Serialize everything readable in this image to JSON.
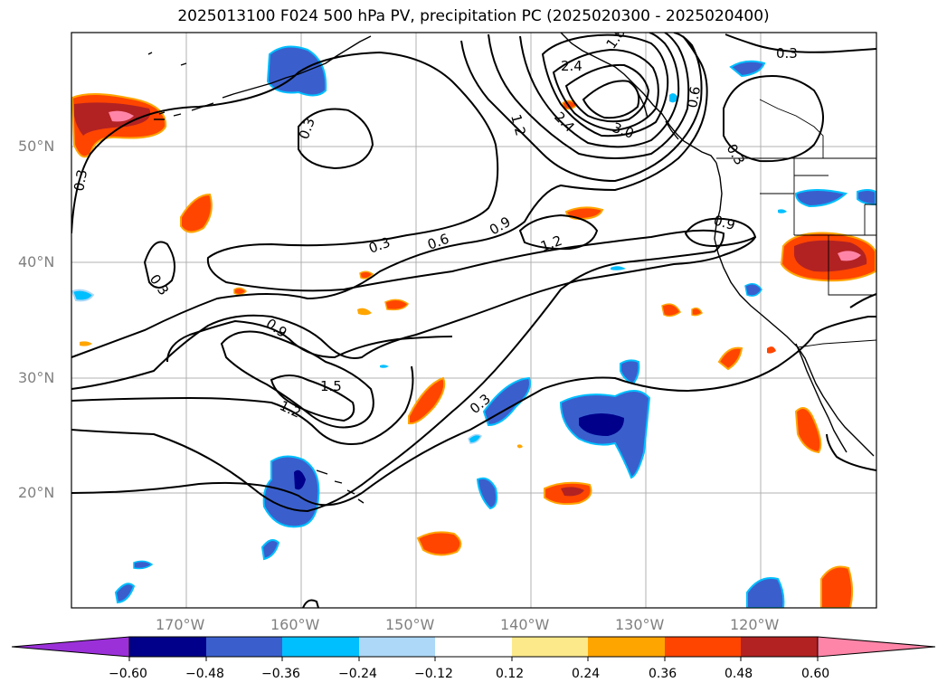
{
  "title": "2025013100 F024 500 hPa PV, precipitation PC (2025020300 - 2025020400)",
  "lat_labels": [
    "50°N",
    "40°N",
    "30°N",
    "20°N"
  ],
  "lon_labels": [
    "170°W",
    "160°W",
    "150°W",
    "140°W",
    "130°W",
    "120°W"
  ],
  "contour_labels": [
    "0.3",
    "0.3",
    "0.3",
    "0.3",
    "0.3",
    "0.3",
    "0.3",
    "0.6",
    "0.6",
    "0.9",
    "0.9",
    "0.9",
    "1.2",
    "1.2",
    "1.2",
    "1.5",
    "1.8",
    "2.4",
    "2.4",
    "3.0"
  ],
  "colorbar": {
    "ticks": [
      "−0.60",
      "−0.48",
      "−0.36",
      "−0.24",
      "−0.12",
      "0.12",
      "0.24",
      "0.36",
      "0.48",
      "0.60"
    ],
    "colors": [
      "#9b30d9",
      "#00008b",
      "#3a5fcd",
      "#00bfff",
      "#add8f7",
      "#ffffff",
      "#fce98a",
      "#ffa500",
      "#ff4500",
      "#b22222",
      "#ff85a8"
    ]
  },
  "colors": {
    "land_outline": "#000000",
    "grid": "#b0b0b0",
    "contour": "#000000"
  }
}
